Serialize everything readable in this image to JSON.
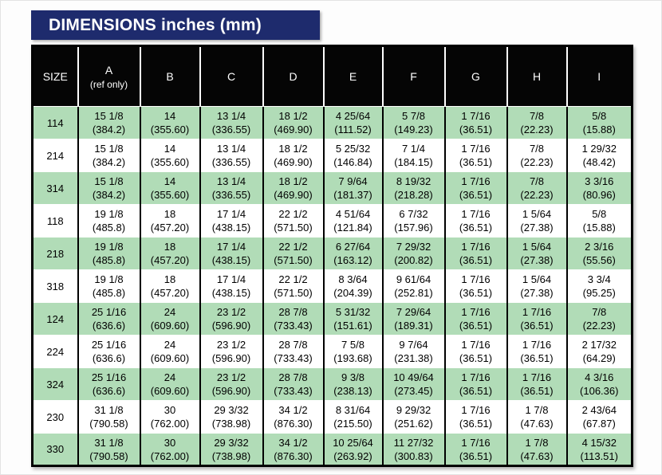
{
  "title": "DIMENSIONS inches (mm)",
  "colors": {
    "banner_bg": "#1e2b6d",
    "header_bg": "#050505",
    "row_green": "#b1dcb7",
    "row_white": "#ffffff",
    "grid": "#000000",
    "text": "#000000"
  },
  "table": {
    "columns": [
      {
        "label": "SIZE",
        "sub": ""
      },
      {
        "label": "A",
        "sub": "(ref only)"
      },
      {
        "label": "B",
        "sub": ""
      },
      {
        "label": "C",
        "sub": ""
      },
      {
        "label": "D",
        "sub": ""
      },
      {
        "label": "E",
        "sub": ""
      },
      {
        "label": "F",
        "sub": ""
      },
      {
        "label": "G",
        "sub": ""
      },
      {
        "label": "H",
        "sub": ""
      },
      {
        "label": "I",
        "sub": ""
      }
    ],
    "rows": [
      {
        "size": "114",
        "shaded": true,
        "cells": [
          [
            "15 1/8",
            "(384.2)"
          ],
          [
            "14",
            "(355.60)"
          ],
          [
            "13 1/4",
            "(336.55)"
          ],
          [
            "18 1/2",
            "(469.90)"
          ],
          [
            "4 25/64",
            "(111.52)"
          ],
          [
            "5 7/8",
            "(149.23)"
          ],
          [
            "1 7/16",
            "(36.51)"
          ],
          [
            "7/8",
            "(22.23)"
          ],
          [
            "5/8",
            "(15.88)"
          ]
        ]
      },
      {
        "size": "214",
        "shaded": false,
        "cells": [
          [
            "15 1/8",
            "(384.2)"
          ],
          [
            "14",
            "(355.60)"
          ],
          [
            "13 1/4",
            "(336.55)"
          ],
          [
            "18 1/2",
            "(469.90)"
          ],
          [
            "5 25/32",
            "(146.84)"
          ],
          [
            "7 1/4",
            "(184.15)"
          ],
          [
            "1 7/16",
            "(36.51)"
          ],
          [
            "7/8",
            "(22.23)"
          ],
          [
            "1 29/32",
            "(48.42)"
          ]
        ]
      },
      {
        "size": "314",
        "shaded": true,
        "cells": [
          [
            "15 1/8",
            "(384.2)"
          ],
          [
            "14",
            "(355.60)"
          ],
          [
            "13 1/4",
            "(336.55)"
          ],
          [
            "18 1/2",
            "(469.90)"
          ],
          [
            "7 9/64",
            "(181.37)"
          ],
          [
            "8 19/32",
            "(218.28)"
          ],
          [
            "1 7/16",
            "(36.51)"
          ],
          [
            "7/8",
            "(22.23)"
          ],
          [
            "3 3/16",
            "(80.96)"
          ]
        ]
      },
      {
        "size": "118",
        "shaded": false,
        "cells": [
          [
            "19 1/8",
            "(485.8)"
          ],
          [
            "18",
            "(457.20)"
          ],
          [
            "17 1/4",
            "(438.15)"
          ],
          [
            "22 1/2",
            "(571.50)"
          ],
          [
            "4 51/64",
            "(121.84)"
          ],
          [
            "6 7/32",
            "(157.96)"
          ],
          [
            "1 7/16",
            "(36.51)"
          ],
          [
            "1 5/64",
            "(27.38)"
          ],
          [
            "5/8",
            "(15.88)"
          ]
        ]
      },
      {
        "size": "218",
        "shaded": true,
        "cells": [
          [
            "19 1/8",
            "(485.8)"
          ],
          [
            "18",
            "(457.20)"
          ],
          [
            "17 1/4",
            "(438.15)"
          ],
          [
            "22 1/2",
            "(571.50)"
          ],
          [
            "6 27/64",
            "(163.12)"
          ],
          [
            "7 29/32",
            "(200.82)"
          ],
          [
            "1 7/16",
            "(36.51)"
          ],
          [
            "1 5/64",
            "(27.38)"
          ],
          [
            "2 3/16",
            "(55.56)"
          ]
        ]
      },
      {
        "size": "318",
        "shaded": false,
        "cells": [
          [
            "19 1/8",
            "(485.8)"
          ],
          [
            "18",
            "(457.20)"
          ],
          [
            "17 1/4",
            "(438.15)"
          ],
          [
            "22 1/2",
            "(571.50)"
          ],
          [
            "8 3/64",
            "(204.39)"
          ],
          [
            "9 61/64",
            "(252.81)"
          ],
          [
            "1 7/16",
            "(36.51)"
          ],
          [
            "1 5/64",
            "(27.38)"
          ],
          [
            "3 3/4",
            "(95.25)"
          ]
        ]
      },
      {
        "size": "124",
        "shaded": true,
        "cells": [
          [
            "25 1/16",
            "(636.6)"
          ],
          [
            "24",
            "(609.60)"
          ],
          [
            "23 1/2",
            "(596.90)"
          ],
          [
            "28 7/8",
            "(733.43)"
          ],
          [
            "5 31/32",
            "(151.61)"
          ],
          [
            "7 29/64",
            "(189.31)"
          ],
          [
            "1 7/16",
            "(36.51)"
          ],
          [
            "1 7/16",
            "(36.51)"
          ],
          [
            "7/8",
            "(22.23)"
          ]
        ]
      },
      {
        "size": "224",
        "shaded": false,
        "cells": [
          [
            "25 1/16",
            "(636.6)"
          ],
          [
            "24",
            "(609.60)"
          ],
          [
            "23 1/2",
            "(596.90)"
          ],
          [
            "28 7/8",
            "(733.43)"
          ],
          [
            "7 5/8",
            "(193.68)"
          ],
          [
            "9 7/64",
            "(231.38)"
          ],
          [
            "1 7/16",
            "(36.51)"
          ],
          [
            "1 7/16",
            "(36.51)"
          ],
          [
            "2 17/32",
            "(64.29)"
          ]
        ]
      },
      {
        "size": "324",
        "shaded": true,
        "cells": [
          [
            "25 1/16",
            "(636.6)"
          ],
          [
            "24",
            "(609.60)"
          ],
          [
            "23 1/2",
            "(596.90)"
          ],
          [
            "28 7/8",
            "(733.43)"
          ],
          [
            "9 3/8",
            "(238.13)"
          ],
          [
            "10 49/64",
            "(273.45)"
          ],
          [
            "1 7/16",
            "(36.51)"
          ],
          [
            "1 7/16",
            "(36.51)"
          ],
          [
            "4 3/16",
            "(106.36)"
          ]
        ]
      },
      {
        "size": "230",
        "shaded": false,
        "cells": [
          [
            "31 1/8",
            "(790.58)"
          ],
          [
            "30",
            "(762.00)"
          ],
          [
            "29 3/32",
            "(738.98)"
          ],
          [
            "34 1/2",
            "(876.30)"
          ],
          [
            "8 31/64",
            "(215.50)"
          ],
          [
            "9 29/32",
            "(251.62)"
          ],
          [
            "1 7/16",
            "(36.51)"
          ],
          [
            "1 7/8",
            "(47.63)"
          ],
          [
            "2 43/64",
            "(67.87)"
          ]
        ]
      },
      {
        "size": "330",
        "shaded": true,
        "cells": [
          [
            "31 1/8",
            "(790.58)"
          ],
          [
            "30",
            "(762.00)"
          ],
          [
            "29 3/32",
            "(738.98)"
          ],
          [
            "34 1/2",
            "(876.30)"
          ],
          [
            "10 25/64",
            "(263.92)"
          ],
          [
            "11 27/32",
            "(300.83)"
          ],
          [
            "1 7/16",
            "(36.51)"
          ],
          [
            "1 7/8",
            "(47.63)"
          ],
          [
            "4 15/32",
            "(113.51)"
          ]
        ]
      }
    ]
  }
}
